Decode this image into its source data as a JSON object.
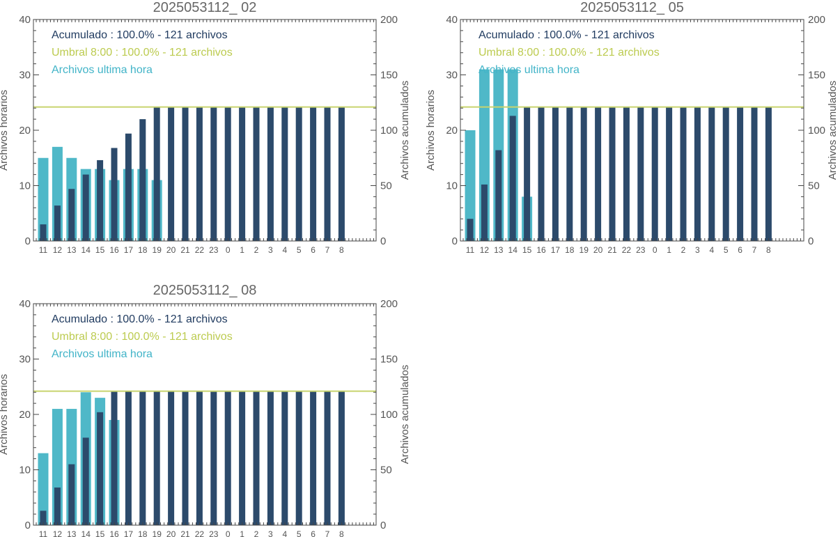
{
  "colors": {
    "hourly": "#4fb8c8",
    "cumulative": "#2c4a6b",
    "threshold": "#c8d46e",
    "legend_cumulative": "#1f3a5f",
    "legend_threshold": "#bccb4f",
    "legend_hourly": "#42b4c8"
  },
  "chart_data": [
    {
      "type": "bar",
      "title": "2025053112_ 02",
      "categories": [
        "11",
        "12",
        "13",
        "14",
        "15",
        "16",
        "17",
        "18",
        "19",
        "20",
        "21",
        "22",
        "23",
        "0",
        "1",
        "2",
        "3",
        "4",
        "5",
        "6",
        "7",
        "8"
      ],
      "ylabel_left": "Archivos horarios",
      "ylabel_right": "Archivos acumulados",
      "ylim_left": [
        0,
        40
      ],
      "ylim_right": [
        0,
        200
      ],
      "yticks_left": [
        "0",
        "10",
        "20",
        "30",
        "40"
      ],
      "yticks_right": [
        "0",
        "50",
        "100",
        "150",
        "200"
      ],
      "threshold_right": 121,
      "legend": [
        {
          "key": "cumulative",
          "text": "Acumulado : 100.0% - 121 archivos"
        },
        {
          "key": "threshold",
          "text": "Umbral 8:00 : 100.0% - 121 archivos"
        },
        {
          "key": "hourly",
          "text": "Archivos ultima hora"
        }
      ],
      "series": [
        {
          "name": "Archivos ultima hora",
          "axis": "left",
          "values": [
            15,
            17,
            15,
            13,
            13,
            11,
            13,
            13,
            11,
            0,
            0,
            0,
            0,
            0,
            0,
            0,
            0,
            0,
            0,
            0,
            0,
            0
          ]
        },
        {
          "name": "Acumulado",
          "axis": "right",
          "values": [
            15,
            32,
            47,
            60,
            73,
            84,
            97,
            110,
            121,
            121,
            121,
            121,
            121,
            121,
            121,
            121,
            121,
            121,
            121,
            121,
            121,
            121
          ]
        }
      ]
    },
    {
      "type": "bar",
      "title": "2025053112_ 05",
      "categories": [
        "11",
        "12",
        "13",
        "14",
        "15",
        "16",
        "17",
        "18",
        "19",
        "20",
        "21",
        "22",
        "23",
        "0",
        "1",
        "2",
        "3",
        "4",
        "5",
        "6",
        "7",
        "8"
      ],
      "ylabel_left": "Archivos horarios",
      "ylabel_right": "Archivos acumulados",
      "ylim_left": [
        0,
        40
      ],
      "ylim_right": [
        0,
        200
      ],
      "yticks_left": [
        "0",
        "10",
        "20",
        "30",
        "40"
      ],
      "yticks_right": [
        "0",
        "50",
        "100",
        "150",
        "200"
      ],
      "threshold_right": 121,
      "legend": [
        {
          "key": "cumulative",
          "text": "Acumulado : 100.0% - 121 archivos"
        },
        {
          "key": "threshold",
          "text": "Umbral 8:00 : 100.0% - 121 archivos"
        },
        {
          "key": "hourly",
          "text": "Archivos ultima hora"
        }
      ],
      "series": [
        {
          "name": "Archivos ultima hora",
          "axis": "left",
          "values": [
            20,
            31,
            31,
            31,
            8,
            0,
            0,
            0,
            0,
            0,
            0,
            0,
            0,
            0,
            0,
            0,
            0,
            0,
            0,
            0,
            0,
            0
          ]
        },
        {
          "name": "Acumulado",
          "axis": "right",
          "values": [
            20,
            51,
            82,
            113,
            121,
            121,
            121,
            121,
            121,
            121,
            121,
            121,
            121,
            121,
            121,
            121,
            121,
            121,
            121,
            121,
            121,
            121
          ]
        }
      ]
    },
    {
      "type": "bar",
      "title": "2025053112_ 08",
      "categories": [
        "11",
        "12",
        "13",
        "14",
        "15",
        "16",
        "17",
        "18",
        "19",
        "20",
        "21",
        "22",
        "23",
        "0",
        "1",
        "2",
        "3",
        "4",
        "5",
        "6",
        "7",
        "8"
      ],
      "ylabel_left": "Archivos horarios",
      "ylabel_right": "Archivos acumulados",
      "ylim_left": [
        0,
        40
      ],
      "ylim_right": [
        0,
        200
      ],
      "yticks_left": [
        "0",
        "10",
        "20",
        "30",
        "40"
      ],
      "yticks_right": [
        "0",
        "50",
        "100",
        "150",
        "200"
      ],
      "threshold_right": 121,
      "legend": [
        {
          "key": "cumulative",
          "text": "Acumulado : 100.0% - 121 archivos"
        },
        {
          "key": "threshold",
          "text": "Umbral 8:00 : 100.0% - 121 archivos"
        },
        {
          "key": "hourly",
          "text": "Archivos ultima hora"
        }
      ],
      "series": [
        {
          "name": "Archivos ultima hora",
          "axis": "left",
          "values": [
            13,
            21,
            21,
            24,
            23,
            19,
            0,
            0,
            0,
            0,
            0,
            0,
            0,
            0,
            0,
            0,
            0,
            0,
            0,
            0,
            0,
            0
          ]
        },
        {
          "name": "Acumulado",
          "axis": "right",
          "values": [
            13,
            34,
            55,
            79,
            102,
            121,
            121,
            121,
            121,
            121,
            121,
            121,
            121,
            121,
            121,
            121,
            121,
            121,
            121,
            121,
            121,
            121
          ]
        }
      ]
    }
  ]
}
